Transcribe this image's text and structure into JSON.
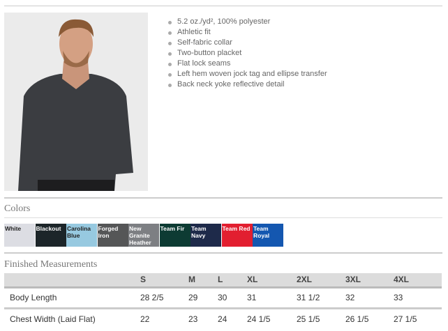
{
  "features": [
    "5.2 oz./yd², 100% polyester",
    "Athletic fit",
    "Self-fabric collar",
    "Two-button placket",
    "Flat lock seams",
    "Left hem woven jock tag and ellipse transfer",
    "Back neck yoke reflective detail"
  ],
  "colors_title": "Colors",
  "colors": [
    {
      "name": "White",
      "hex": "#dcdde3",
      "text": "#222"
    },
    {
      "name": "Blackout",
      "hex": "#1c2529",
      "text": "#fff"
    },
    {
      "name": "Carolina Blue",
      "hex": "#97c9e0",
      "text": "#222"
    },
    {
      "name": "Forged Iron",
      "hex": "#555657",
      "text": "#fff"
    },
    {
      "name": "New Granite Heather",
      "hex": "#7d7f83",
      "text": "#fff"
    },
    {
      "name": "Team Fir",
      "hex": "#0d3b33",
      "text": "#fff"
    },
    {
      "name": "Team Navy",
      "hex": "#1e2a4a",
      "text": "#fff"
    },
    {
      "name": "Team Red",
      "hex": "#e21f30",
      "text": "#fff"
    },
    {
      "name": "Team Royal",
      "hex": "#1457b0",
      "text": "#fff"
    }
  ],
  "measurements_title": "Finished Measurements",
  "table": {
    "headers": [
      "",
      "S",
      "M",
      "L",
      "XL",
      "2XL",
      "3XL",
      "4XL"
    ],
    "rows": [
      [
        "Body Length",
        "28 2/5",
        "29",
        "30",
        "31",
        "31 1/2",
        "32",
        "33"
      ],
      [
        "Chest Width (Laid Flat)",
        "22",
        "23",
        "24",
        "24 1/5",
        "25 1/5",
        "26 1/5",
        "27 1/5"
      ]
    ]
  }
}
